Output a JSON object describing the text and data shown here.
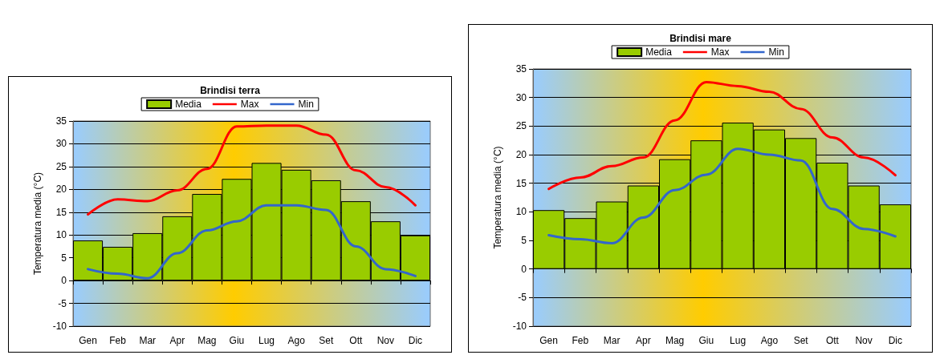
{
  "chart_data": [
    {
      "type": "bar",
      "title": "Brindisi terra",
      "ylabel": "Temperatura media (°C)",
      "categories": [
        "Gen",
        "Feb",
        "Mar",
        "Apr",
        "Mag",
        "Giu",
        "Lug",
        "Ago",
        "Set",
        "Ott",
        "Nov",
        "Dic"
      ],
      "series": [
        {
          "name": "Media",
          "color": "#99cc00",
          "values": [
            8.8,
            7.4,
            10.4,
            14.1,
            19,
            22.3,
            25.8,
            24.3,
            22,
            17.4,
            13,
            9.9
          ]
        },
        {
          "name": "Max",
          "type": "line",
          "color": "#ff0000",
          "values": [
            14.5,
            17.8,
            17.4,
            19.8,
            24.5,
            33.8,
            34,
            34,
            32,
            24.2,
            20.5,
            16.5
          ]
        },
        {
          "name": "Min",
          "type": "line",
          "color": "#3366cc",
          "values": [
            2.5,
            1.5,
            0.5,
            6,
            11,
            13,
            16.5,
            16.5,
            15.5,
            7.5,
            2.5,
            1
          ]
        }
      ],
      "ylim": [
        -10,
        35
      ],
      "yticks": [
        -10,
        -5,
        0,
        5,
        10,
        15,
        20,
        25,
        30,
        35
      ],
      "grid": "y",
      "legend": "top",
      "marker": "none",
      "line_style": "solid"
    },
    {
      "type": "bar",
      "title": "Brindisi mare",
      "ylabel": "Temperatura media (°C)",
      "categories": [
        "Gen",
        "Feb",
        "Mar",
        "Apr",
        "Mag",
        "Giu",
        "Lug",
        "Ago",
        "Set",
        "Ott",
        "Nov",
        "Dic"
      ],
      "series": [
        {
          "name": "Media",
          "color": "#99cc00",
          "values": [
            10.3,
            8.9,
            11.8,
            14.6,
            19.2,
            22.5,
            25.6,
            24.4,
            22.9,
            18.6,
            14.6,
            11.3
          ]
        },
        {
          "name": "Max",
          "type": "line",
          "color": "#ff0000",
          "values": [
            14,
            16,
            18,
            19.5,
            26,
            32.7,
            32,
            31,
            28,
            23,
            19.5,
            16.4
          ]
        },
        {
          "name": "Min",
          "type": "line",
          "color": "#3366cc",
          "values": [
            5.9,
            5.2,
            4.5,
            9,
            13.8,
            16.5,
            21,
            20,
            19,
            10.5,
            7,
            5.7
          ]
        }
      ],
      "ylim": [
        -10,
        35
      ],
      "yticks": [
        -10,
        -5,
        0,
        5,
        10,
        15,
        20,
        25,
        30,
        35
      ],
      "grid": "y",
      "legend": "top",
      "marker": "none",
      "line_style": "solid"
    }
  ]
}
